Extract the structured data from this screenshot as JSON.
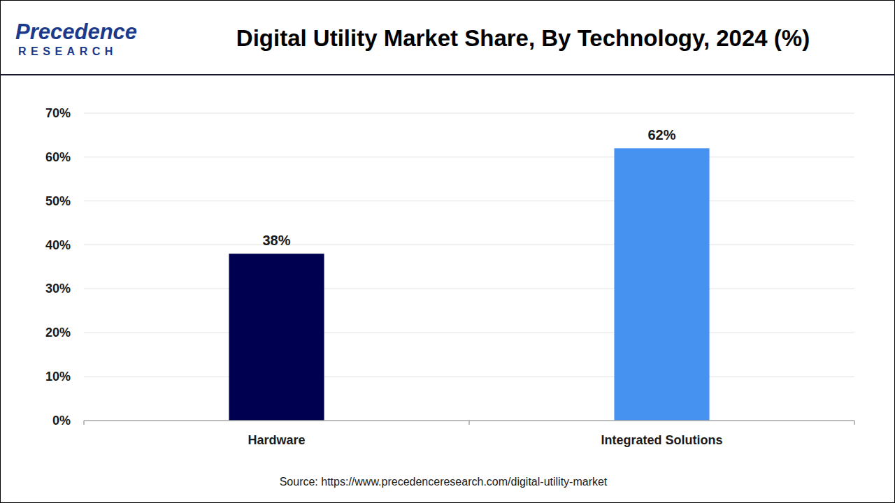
{
  "chart_data": {
    "type": "bar",
    "title": "Digital Utility Market Share, By Technology, 2024 (%)",
    "brand": {
      "name": "Precedence",
      "tagline": "RESEARCH"
    },
    "source": "Source: https://www.precedenceresearch.com/digital-utility-market",
    "categories": [
      "Hardware",
      "Integrated Solutions"
    ],
    "values": [
      38,
      62
    ],
    "value_labels": [
      "38%",
      "62%"
    ],
    "colors": [
      "#000050",
      "#4592F0"
    ],
    "ylim": [
      0,
      70
    ],
    "yticks": [
      {
        "value": 0,
        "label": "0%"
      },
      {
        "value": 10,
        "label": "10%"
      },
      {
        "value": 20,
        "label": "20%"
      },
      {
        "value": 30,
        "label": "30%"
      },
      {
        "value": 40,
        "label": "40%"
      },
      {
        "value": 50,
        "label": "50%"
      },
      {
        "value": 60,
        "label": "60%"
      },
      {
        "value": 70,
        "label": "70%"
      }
    ],
    "grid": true,
    "data_labels": true
  }
}
